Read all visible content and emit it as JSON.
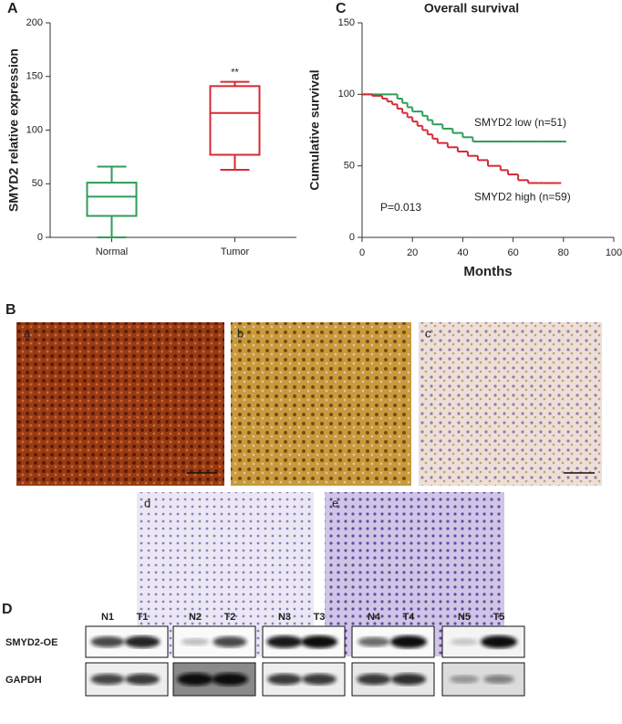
{
  "chart_data": [
    {
      "type": "box",
      "ylabel": "SMYD2 relative expression",
      "categories": [
        "Normal",
        "Tumor"
      ],
      "boxes": [
        {
          "whisker_low": 0,
          "q1": 20,
          "median": 38,
          "q3": 51,
          "whisker_high": 66,
          "color": "#2e9e57"
        },
        {
          "whisker_low": 63,
          "q1": 77,
          "median": 116,
          "q3": 141,
          "whisker_high": 145,
          "color": "#d62a36"
        }
      ],
      "annotation": "**",
      "ylim": [
        0,
        200
      ],
      "yticks": [
        0,
        50,
        100,
        150,
        200
      ]
    },
    {
      "type": "step",
      "title": "Overall survival",
      "xlabel": "Months",
      "ylabel": "Cumulative survival",
      "series": [
        {
          "name": "SMYD2 low (n=51)",
          "color": "#2e9e57",
          "x": [
            0,
            12,
            14,
            16,
            18,
            20,
            24,
            26,
            28,
            32,
            36,
            40,
            44,
            50,
            60,
            70,
            80
          ],
          "values": [
            100,
            100,
            97,
            94,
            91,
            88,
            85,
            82,
            79,
            76,
            73,
            70,
            67,
            67,
            67,
            67,
            67
          ]
        },
        {
          "name": "SMYD2 high (n=59)",
          "color": "#d62a36",
          "x": [
            0,
            4,
            8,
            10,
            12,
            14,
            16,
            18,
            20,
            22,
            24,
            26,
            28,
            30,
            34,
            38,
            42,
            46,
            50,
            55,
            58,
            62,
            66,
            70,
            78
          ],
          "values": [
            100,
            99,
            97,
            95,
            93,
            90,
            87,
            84,
            81,
            78,
            75,
            72,
            69,
            66,
            63,
            60,
            57,
            54,
            50,
            47,
            44,
            40,
            38,
            38,
            38
          ]
        }
      ],
      "annotation": "P=0.013",
      "xlim": [
        0,
        100
      ],
      "xticks": [
        0,
        20,
        40,
        60,
        80,
        100
      ],
      "ylim": [
        0,
        150
      ],
      "yticks": [
        0,
        50,
        100,
        150
      ]
    }
  ],
  "figure": {
    "panel_labels": [
      "A",
      "B",
      "C",
      "D"
    ],
    "histology_labels": [
      "a",
      "b",
      "c",
      "d",
      "e"
    ],
    "blot": {
      "lanes": [
        "N1",
        "T1",
        "N2",
        "T2",
        "N3",
        "T3",
        "N4",
        "T4",
        "N5",
        "T5"
      ],
      "rows": [
        "SMYD2-OE",
        "GAPDH"
      ]
    }
  }
}
